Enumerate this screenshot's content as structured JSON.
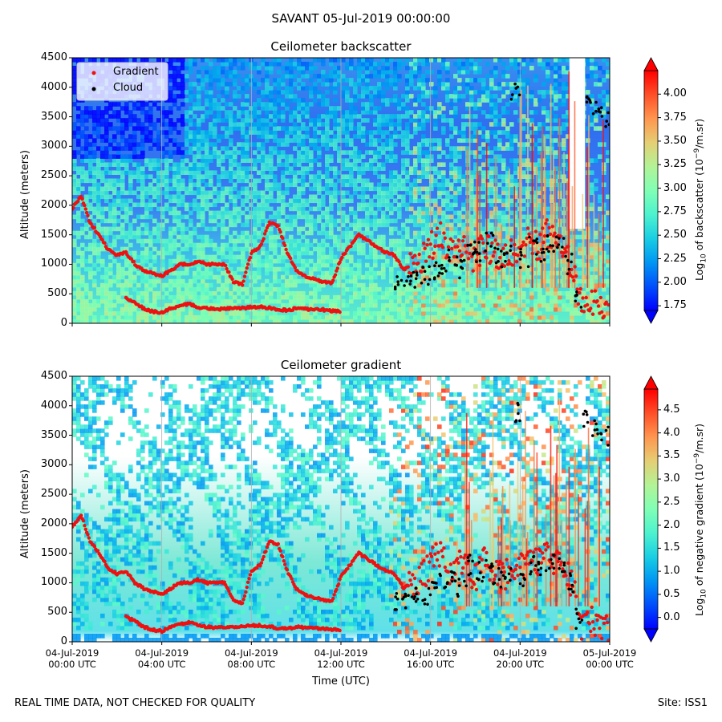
{
  "figure": {
    "suptitle": "SAVANT 05-Jul-2019 00:00:00",
    "xlabel": "Time (UTC)",
    "footer_left": "REAL TIME DATA, NOT CHECKED FOR QUALITY",
    "footer_right": "Site: ISS1"
  },
  "colors": {
    "gradient_marker": "#ee1111",
    "cloud_marker": "#000000",
    "colormap": "rainbow"
  },
  "chart_data": [
    {
      "type": "heatmap",
      "title": "Ceilometer backscatter",
      "ylabel": "Altitude (meters)",
      "xlim": [
        "04-Jul-2019 00:00 UTC",
        "05-Jul-2019 00:00 UTC"
      ],
      "ylim": [
        0,
        4500
      ],
      "y_ticks": [
        "0",
        "500",
        "1000",
        "1500",
        "2000",
        "2500",
        "3000",
        "3500",
        "4000",
        "4500"
      ],
      "x_ticks_shown": false,
      "vertical_grid": true,
      "legend": {
        "position": "upper-left",
        "entries": [
          "Gradient",
          "Cloud"
        ]
      },
      "colorbar": {
        "label": "Log10 of backscatter (10^-9/m.sr)",
        "range": [
          1.7,
          4.25
        ],
        "ticks": [
          "1.75",
          "2.00",
          "2.25",
          "2.50",
          "2.75",
          "3.00",
          "3.25",
          "3.50",
          "3.75",
          "4.00"
        ]
      },
      "series": [
        {
          "name": "Gradient",
          "x_hours": [
            0,
            0.4,
            0.8,
            1.2,
            1.6,
            2,
            2.4,
            2.8,
            3.2,
            3.6,
            4,
            4.4,
            4.8,
            5.2,
            5.6,
            6,
            6.4,
            6.8,
            7.2,
            7.6,
            8,
            8.4,
            8.8,
            9.2,
            9.6,
            10,
            10.4,
            10.8,
            11.2,
            11.6,
            12,
            12.4,
            12.8,
            13.2,
            13.6,
            14,
            14.4,
            14.8,
            15.2,
            15.6,
            16,
            16.4,
            16.8,
            17.2,
            17.6,
            18,
            18.4,
            18.8,
            19.2,
            19.6,
            20,
            20.4,
            20.8,
            21.2,
            21.6,
            22,
            22.4,
            22.8,
            23.2,
            23.6,
            24
          ],
          "y_meters": [
            1950,
            2150,
            1700,
            1500,
            1250,
            1150,
            1200,
            1000,
            900,
            850,
            800,
            900,
            1000,
            1000,
            1050,
            1000,
            1000,
            1000,
            700,
            650,
            1200,
            1300,
            1700,
            1650,
            1200,
            900,
            800,
            750,
            700,
            680,
            1100,
            1300,
            1500,
            1400,
            1300,
            1200,
            1150,
            900,
            1000,
            1100,
            1300,
            1500,
            1200,
            1400,
            1250,
            1100,
            1350,
            1200,
            1100,
            1200,
            1250,
            1400,
            1300,
            1500,
            1350,
            1200,
            900,
            200,
            350,
            250,
            200
          ]
        },
        {
          "name": "Gradient (lower layer)",
          "x_hours": [
            2.4,
            2.8,
            3.2,
            3.6,
            4,
            4.4,
            4.8,
            5.2,
            5.6,
            6,
            6.4,
            6.8,
            7.2,
            7.6,
            8,
            8.4,
            8.8,
            9.2,
            9.6,
            10,
            10.4,
            10.8,
            11.2,
            11.6,
            12
          ],
          "y_meters": [
            420,
            350,
            250,
            200,
            180,
            250,
            300,
            330,
            280,
            250,
            240,
            250,
            250,
            260,
            270,
            280,
            260,
            230,
            220,
            250,
            240,
            230,
            230,
            210,
            200
          ]
        },
        {
          "name": "Cloud",
          "x_hours": [
            14.6,
            15,
            15.4,
            15.8,
            16.2,
            16.6,
            17,
            17.4,
            17.8,
            18.2,
            18.6,
            19,
            19.4,
            19.8,
            20.2,
            20.6,
            21,
            21.4,
            21.8,
            22.2,
            22.6,
            23,
            23.4,
            23.8
          ],
          "y_meters": [
            650,
            700,
            750,
            800,
            900,
            1000,
            1100,
            900,
            1300,
            1200,
            1400,
            1100,
            1200,
            3900,
            1100,
            1300,
            1200,
            1350,
            1300,
            1000,
            400,
            3800,
            3600,
            3500
          ]
        }
      ]
    },
    {
      "type": "heatmap",
      "title": "Ceilometer gradient",
      "ylabel": "Altitude (meters)",
      "xlabel": "Time (UTC)",
      "xlim": [
        "04-Jul-2019 00:00 UTC",
        "05-Jul-2019 00:00 UTC"
      ],
      "ylim": [
        0,
        4500
      ],
      "y_ticks": [
        "0",
        "500",
        "1000",
        "1500",
        "2000",
        "2500",
        "3000",
        "3500",
        "4000",
        "4500"
      ],
      "x_ticks": [
        [
          "04-Jul-2019",
          "00:00 UTC"
        ],
        [
          "04-Jul-2019",
          "04:00 UTC"
        ],
        [
          "04-Jul-2019",
          "08:00 UTC"
        ],
        [
          "04-Jul-2019",
          "12:00 UTC"
        ],
        [
          "04-Jul-2019",
          "16:00 UTC"
        ],
        [
          "04-Jul-2019",
          "20:00 UTC"
        ],
        [
          "05-Jul-2019",
          "00:00 UTC"
        ]
      ],
      "vertical_grid": true,
      "colorbar": {
        "label": "Log10 of negative gradient (10^-9/m.sr)",
        "range": [
          -0.25,
          4.95
        ],
        "ticks": [
          "0.0",
          "0.5",
          "1.0",
          "1.5",
          "2.0",
          "2.5",
          "3.0",
          "3.5",
          "4.0",
          "4.5"
        ]
      }
    }
  ],
  "labels": {
    "cb1_label": {
      "pre": "Log",
      "sub": "10",
      "mid": " of backscatter (10",
      "sup": "−9",
      "post": "/m.sr)"
    },
    "cb2_label": {
      "pre": "Log",
      "sub": "10",
      "mid": " of negative gradient (10",
      "sup": "−9",
      "post": "/m.sr)"
    }
  }
}
